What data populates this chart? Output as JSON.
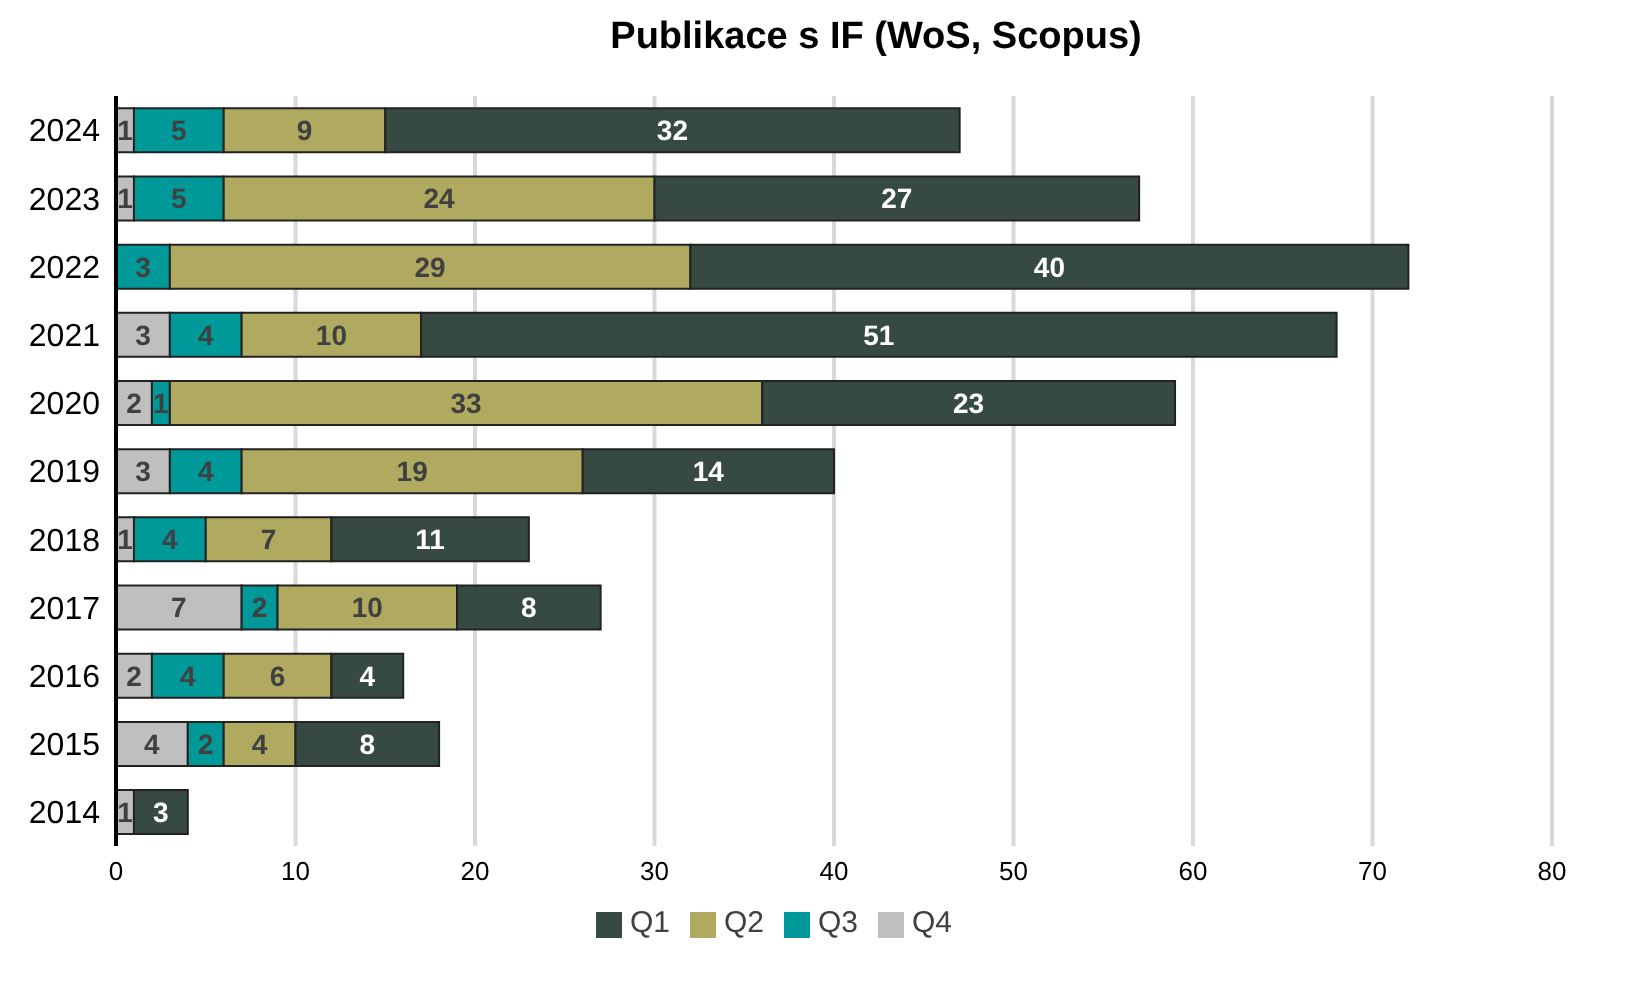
{
  "chart_data": {
    "type": "bar",
    "orientation": "horizontal",
    "stacked": true,
    "title": "Publikace s IF (WoS, Scopus)",
    "categories": [
      "2024",
      "2023",
      "2022",
      "2021",
      "2020",
      "2019",
      "2018",
      "2017",
      "2016",
      "2015",
      "2014"
    ],
    "series": [
      {
        "name": "Q4",
        "color": "#bfbfbf",
        "values": [
          1,
          1,
          null,
          3,
          2,
          3,
          1,
          7,
          2,
          4,
          1
        ]
      },
      {
        "name": "Q3",
        "color": "#009999",
        "values": [
          5,
          5,
          3,
          4,
          1,
          4,
          4,
          2,
          4,
          2,
          null
        ]
      },
      {
        "name": "Q2",
        "color": "#b0aa60",
        "values": [
          9,
          24,
          29,
          10,
          33,
          19,
          7,
          10,
          6,
          4,
          null
        ]
      },
      {
        "name": "Q1",
        "color": "#364a42",
        "values": [
          32,
          27,
          40,
          51,
          23,
          14,
          11,
          8,
          4,
          8,
          3
        ]
      }
    ],
    "xlim": [
      0,
      80
    ],
    "xticks": [
      0,
      10,
      20,
      30,
      40,
      50,
      60,
      70,
      80
    ],
    "grid": "x",
    "legend": "bottom",
    "data_labels": true
  }
}
